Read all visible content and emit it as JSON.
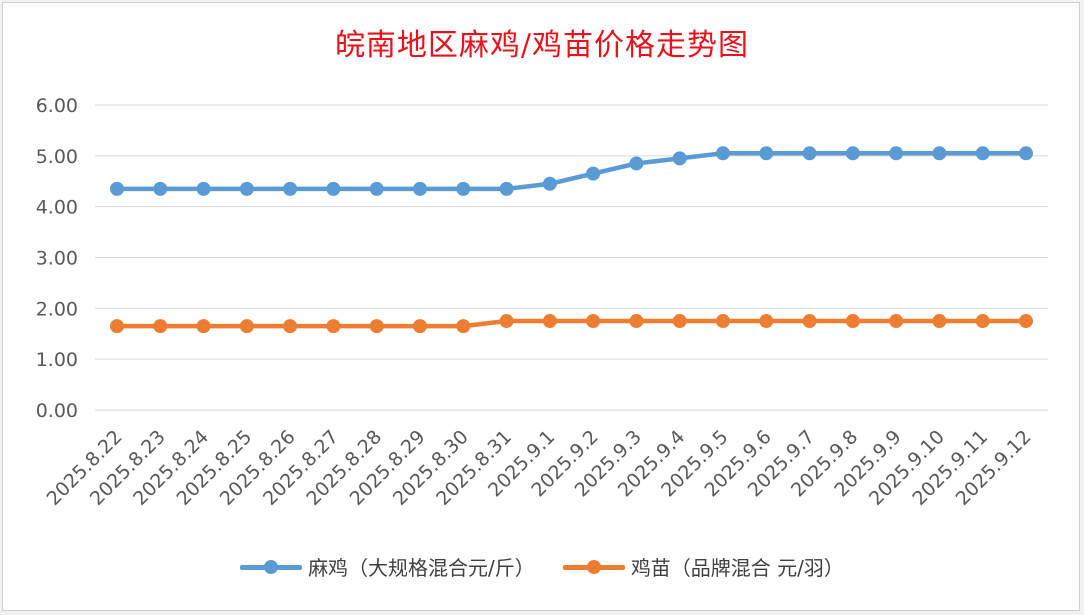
{
  "chart_data": {
    "type": "line",
    "title": "皖南地区麻鸡/鸡苗价格走势图",
    "categories": [
      "2025.8.22",
      "2025.8.23",
      "2025.8.24",
      "2025.8.25",
      "2025.8.26",
      "2025.8.27",
      "2025.8.28",
      "2025.8.29",
      "2025.8.30",
      "2025.8.31",
      "2025.9.1",
      "2025.9.2",
      "2025.9.3",
      "2025.9.4",
      "2025.9.5",
      "2025.9.6",
      "2025.9.7",
      "2025.9.8",
      "2025.9.9",
      "2025.9.10",
      "2025.9.11",
      "2025.9.12"
    ],
    "y_ticks": [
      "0.00",
      "1.00",
      "2.00",
      "3.00",
      "4.00",
      "5.00",
      "6.00"
    ],
    "ylim": [
      0,
      6
    ],
    "grid": true,
    "legend_position": "bottom",
    "series": [
      {
        "name": "麻鸡（大规格混合元/斤）",
        "color": "#5b9bd5",
        "values": [
          4.35,
          4.35,
          4.35,
          4.35,
          4.35,
          4.35,
          4.35,
          4.35,
          4.35,
          4.35,
          4.45,
          4.65,
          4.85,
          4.95,
          5.05,
          5.05,
          5.05,
          5.05,
          5.05,
          5.05,
          5.05,
          5.05
        ]
      },
      {
        "name": "鸡苗（品牌混合 元/羽）",
        "color": "#ed7d31",
        "values": [
          1.65,
          1.65,
          1.65,
          1.65,
          1.65,
          1.65,
          1.65,
          1.65,
          1.65,
          1.75,
          1.75,
          1.75,
          1.75,
          1.75,
          1.75,
          1.75,
          1.75,
          1.75,
          1.75,
          1.75,
          1.75,
          1.75
        ]
      }
    ]
  }
}
